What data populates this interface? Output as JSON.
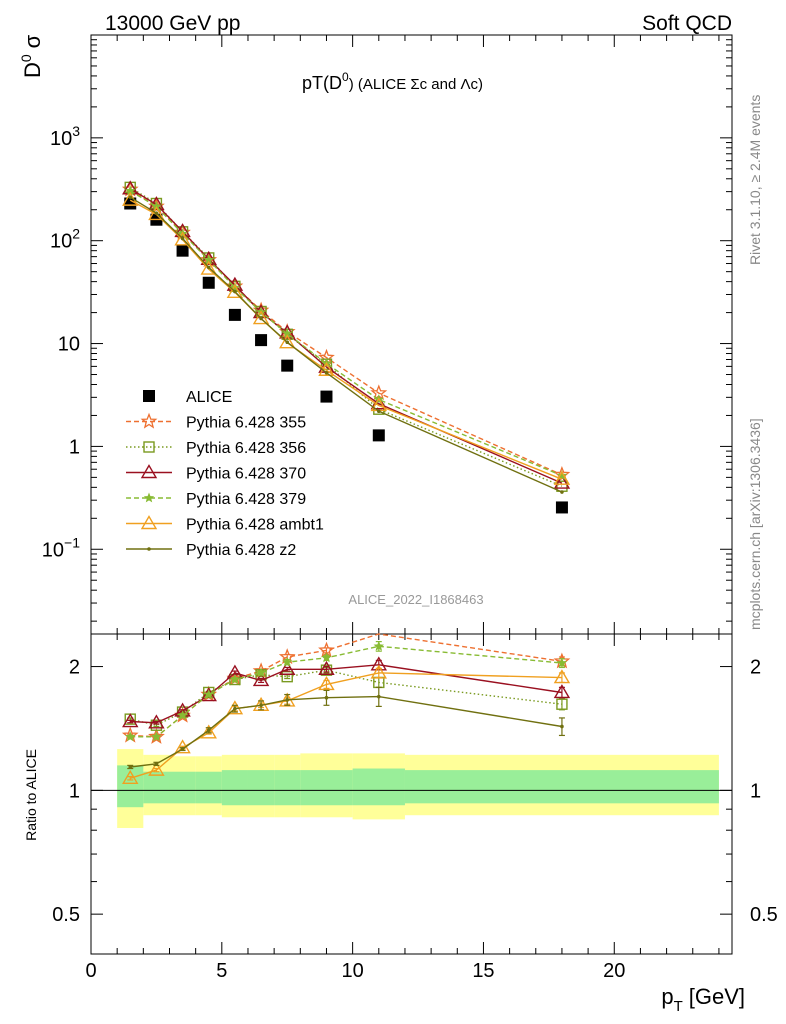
{
  "header": {
    "left": "13000 GeV pp",
    "right": "Soft QCD",
    "ylabel_main": "D",
    "ylabel_main_sup": "0",
    "ylabel_main_sigma": "σ",
    "plot_title_pre": "pT(D",
    "plot_title_sup": "0",
    "plot_title_post": ") (ALICE Σc and Λc)",
    "rivet_label": "Rivet 3.1.10, ≥ 2.4M events",
    "mcplots_label": "mcplots.cern.ch [arXiv:1306.3436]",
    "analysis_label": "ALICE_2022_I1868463",
    "ratio_ylabel": "Ratio to ALICE",
    "xlabel_p": "p",
    "xlabel_sub": "T",
    "xlabel_unit": "[GeV]"
  },
  "colors": {
    "alice": "#000000",
    "p355": "#ee7030",
    "p356": "#7a9a20",
    "p370": "#9a1020",
    "p379": "#88bb33",
    "ambt1": "#f0a020",
    "z2": "#707010",
    "band_outer": "#ffff99",
    "band_inner": "#99ee99"
  },
  "chart_data": [
    {
      "type": "scatter",
      "panel": "main",
      "yscale": "log",
      "xlim": [
        0,
        24.5
      ],
      "ylim": [
        0.015,
        10000
      ],
      "y_ticks": [
        {
          "v": 0.1,
          "base": "10",
          "exp": "−1"
        },
        {
          "v": 1,
          "base": "1",
          "exp": ""
        },
        {
          "v": 10,
          "base": "10",
          "exp": ""
        },
        {
          "v": 100,
          "base": "10",
          "exp": "2"
        },
        {
          "v": 1000,
          "base": "10",
          "exp": "3"
        }
      ],
      "x": [
        1.5,
        2.5,
        3.5,
        4.5,
        5.5,
        6.5,
        7.5,
        9,
        11,
        18
      ],
      "series": [
        {
          "name": "ALICE",
          "key": "alice",
          "marker": "square-filled",
          "line": "none",
          "values": [
            230,
            160,
            80,
            39,
            19,
            10.8,
            6.1,
            3.05,
            1.28,
            0.255
          ]
        },
        {
          "name": "Pythia 6.428 355",
          "key": "p355",
          "marker": "star-open",
          "line": "dashed",
          "values": [
            315,
            215,
            120,
            65,
            36,
            21,
            13,
            7.3,
            3.3,
            0.53
          ]
        },
        {
          "name": "Pythia 6.428 356",
          "key": "p356",
          "marker": "square-open",
          "line": "dotted",
          "values": [
            330,
            230,
            122,
            68,
            36,
            20.5,
            12.3,
            6.3,
            2.3,
            0.41
          ]
        },
        {
          "name": "Pythia 6.428 370",
          "key": "p370",
          "marker": "triangle-open",
          "line": "solid",
          "values": [
            320,
            225,
            123,
            66,
            37,
            20,
            12.7,
            5.9,
            2.6,
            0.44
          ]
        },
        {
          "name": "Pythia 6.428 379",
          "key": "p379",
          "marker": "star-filled",
          "line": "dashed",
          "values": [
            305,
            215,
            117,
            65,
            35,
            20.2,
            12.5,
            6.4,
            2.85,
            0.52
          ]
        },
        {
          "name": "Pythia 6.428 ambt1",
          "key": "ambt1",
          "marker": "triangle-open",
          "line": "solid",
          "values": [
            248,
            180,
            102,
            53,
            31.5,
            17.5,
            10.2,
            5.5,
            2.5,
            0.48
          ]
        },
        {
          "name": "Pythia 6.428 z2",
          "key": "z2",
          "marker": "dot",
          "line": "solid",
          "values": [
            265,
            185,
            105,
            55,
            32,
            17.5,
            10.3,
            5.2,
            2.2,
            0.36
          ]
        }
      ]
    },
    {
      "type": "line",
      "panel": "ratio",
      "ylabel": "Ratio to ALICE",
      "xlabel": "p_T [GeV]",
      "yscale": "log",
      "xlim": [
        0,
        24.5
      ],
      "ylim": [
        0.4,
        2.4
      ],
      "y_ticks": [
        0.5,
        1,
        2
      ],
      "x_ticks": [
        0,
        5,
        10,
        15,
        20
      ],
      "x": [
        1.5,
        2.5,
        3.5,
        4.5,
        5.5,
        6.5,
        7.5,
        9,
        11,
        18
      ],
      "bands": {
        "edges": [
          1,
          2,
          3,
          4,
          5,
          6,
          7,
          8,
          10,
          12,
          24
        ],
        "outer": [
          [
            0.81,
            1.26
          ],
          [
            0.87,
            1.22
          ],
          [
            0.87,
            1.21
          ],
          [
            0.87,
            1.21
          ],
          [
            0.86,
            1.22
          ],
          [
            0.86,
            1.22
          ],
          [
            0.86,
            1.22
          ],
          [
            0.86,
            1.23
          ],
          [
            0.85,
            1.23
          ],
          [
            0.87,
            1.22
          ]
        ],
        "inner": [
          [
            0.91,
            1.15
          ],
          [
            0.93,
            1.11
          ],
          [
            0.93,
            1.11
          ],
          [
            0.93,
            1.11
          ],
          [
            0.92,
            1.12
          ],
          [
            0.92,
            1.12
          ],
          [
            0.92,
            1.12
          ],
          [
            0.92,
            1.12
          ],
          [
            0.92,
            1.13
          ],
          [
            0.93,
            1.12
          ]
        ]
      },
      "series": [
        {
          "name": "Pythia 6.428 355",
          "key": "p355",
          "values": [
            1.36,
            1.35,
            1.52,
            1.71,
            1.87,
            1.95,
            2.11,
            2.19,
            2.42,
            2.06
          ],
          "errors": [
            0.01,
            0.01,
            0.01,
            0.01,
            0.02,
            0.02,
            0.03,
            0.03,
            0.06,
            0.05
          ]
        },
        {
          "name": "Pythia 6.428 356",
          "key": "p356",
          "values": [
            1.49,
            1.44,
            1.55,
            1.73,
            1.86,
            1.91,
            1.89,
            1.96,
            1.83,
            1.62
          ],
          "errors": [
            0.01,
            0.01,
            0.01,
            0.01,
            0.02,
            0.02,
            0.02,
            0.03,
            0.05,
            0.05
          ]
        },
        {
          "name": "Pythia 6.428 370",
          "key": "p370",
          "values": [
            1.47,
            1.46,
            1.56,
            1.7,
            1.93,
            1.85,
            1.97,
            1.97,
            2.02,
            1.73
          ],
          "errors": [
            0.01,
            0.01,
            0.01,
            0.01,
            0.02,
            0.02,
            0.02,
            0.03,
            0.05,
            0.05
          ]
        },
        {
          "name": "Pythia 6.428 379",
          "key": "p379",
          "values": [
            1.35,
            1.35,
            1.52,
            1.71,
            1.86,
            1.93,
            2.05,
            2.1,
            2.24,
            2.04
          ],
          "errors": [
            0.01,
            0.01,
            0.01,
            0.01,
            0.02,
            0.02,
            0.03,
            0.03,
            0.06,
            0.05
          ]
        },
        {
          "name": "Pythia 6.428 ambt1",
          "key": "ambt1",
          "values": [
            1.07,
            1.12,
            1.27,
            1.38,
            1.58,
            1.61,
            1.65,
            1.81,
            1.93,
            1.88
          ],
          "errors": [
            0.01,
            0.01,
            0.01,
            0.01,
            0.02,
            0.02,
            0.03,
            0.04,
            0.05,
            0.05
          ]
        },
        {
          "name": "Pythia 6.428 z2",
          "key": "z2",
          "values": [
            1.14,
            1.16,
            1.26,
            1.4,
            1.58,
            1.61,
            1.66,
            1.68,
            1.69,
            1.43
          ],
          "errors": [
            0.01,
            0.01,
            0.01,
            0.02,
            0.03,
            0.04,
            0.05,
            0.07,
            0.09,
            0.07
          ]
        }
      ]
    }
  ]
}
